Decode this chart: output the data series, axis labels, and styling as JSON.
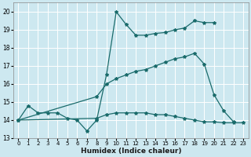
{
  "xlabel": "Humidex (Indice chaleur)",
  "bg_color": "#cde8f0",
  "grid_color": "#ffffff",
  "line_color": "#1a6b6b",
  "xlim": [
    -0.5,
    23.5
  ],
  "ylim": [
    13.0,
    20.5
  ],
  "yticks": [
    13,
    14,
    15,
    16,
    17,
    18,
    19,
    20
  ],
  "xticks": [
    0,
    1,
    2,
    3,
    4,
    5,
    6,
    7,
    8,
    9,
    10,
    11,
    12,
    13,
    14,
    15,
    16,
    17,
    18,
    19,
    20,
    21,
    22,
    23
  ],
  "line1_x": [
    0,
    1,
    2,
    3,
    4,
    5,
    6,
    7,
    8,
    9,
    10,
    11,
    12,
    13,
    14,
    15,
    16,
    17,
    18,
    19,
    20
  ],
  "line1_y": [
    14.0,
    14.8,
    14.4,
    14.4,
    14.4,
    14.1,
    14.0,
    13.4,
    14.0,
    16.5,
    20.0,
    19.3,
    18.7,
    18.7,
    18.8,
    18.85,
    19.0,
    19.1,
    19.5,
    19.4,
    19.4
  ],
  "line2_x": [
    0,
    8,
    9,
    10,
    11,
    12,
    13,
    14,
    15,
    16,
    17,
    18,
    19,
    20,
    21,
    22
  ],
  "line2_y": [
    14.0,
    15.3,
    16.0,
    16.3,
    16.5,
    16.7,
    16.8,
    17.0,
    17.2,
    17.4,
    17.5,
    17.7,
    17.1,
    15.4,
    14.5,
    13.9
  ],
  "line3_x": [
    0,
    8,
    9,
    10,
    11,
    12,
    13,
    14,
    15,
    16,
    17,
    18,
    19,
    20,
    21,
    22,
    23
  ],
  "line3_y": [
    14.0,
    14.1,
    14.3,
    14.4,
    14.4,
    14.4,
    14.4,
    14.3,
    14.3,
    14.2,
    14.1,
    14.0,
    13.9,
    13.9,
    13.85,
    13.85,
    13.85
  ]
}
